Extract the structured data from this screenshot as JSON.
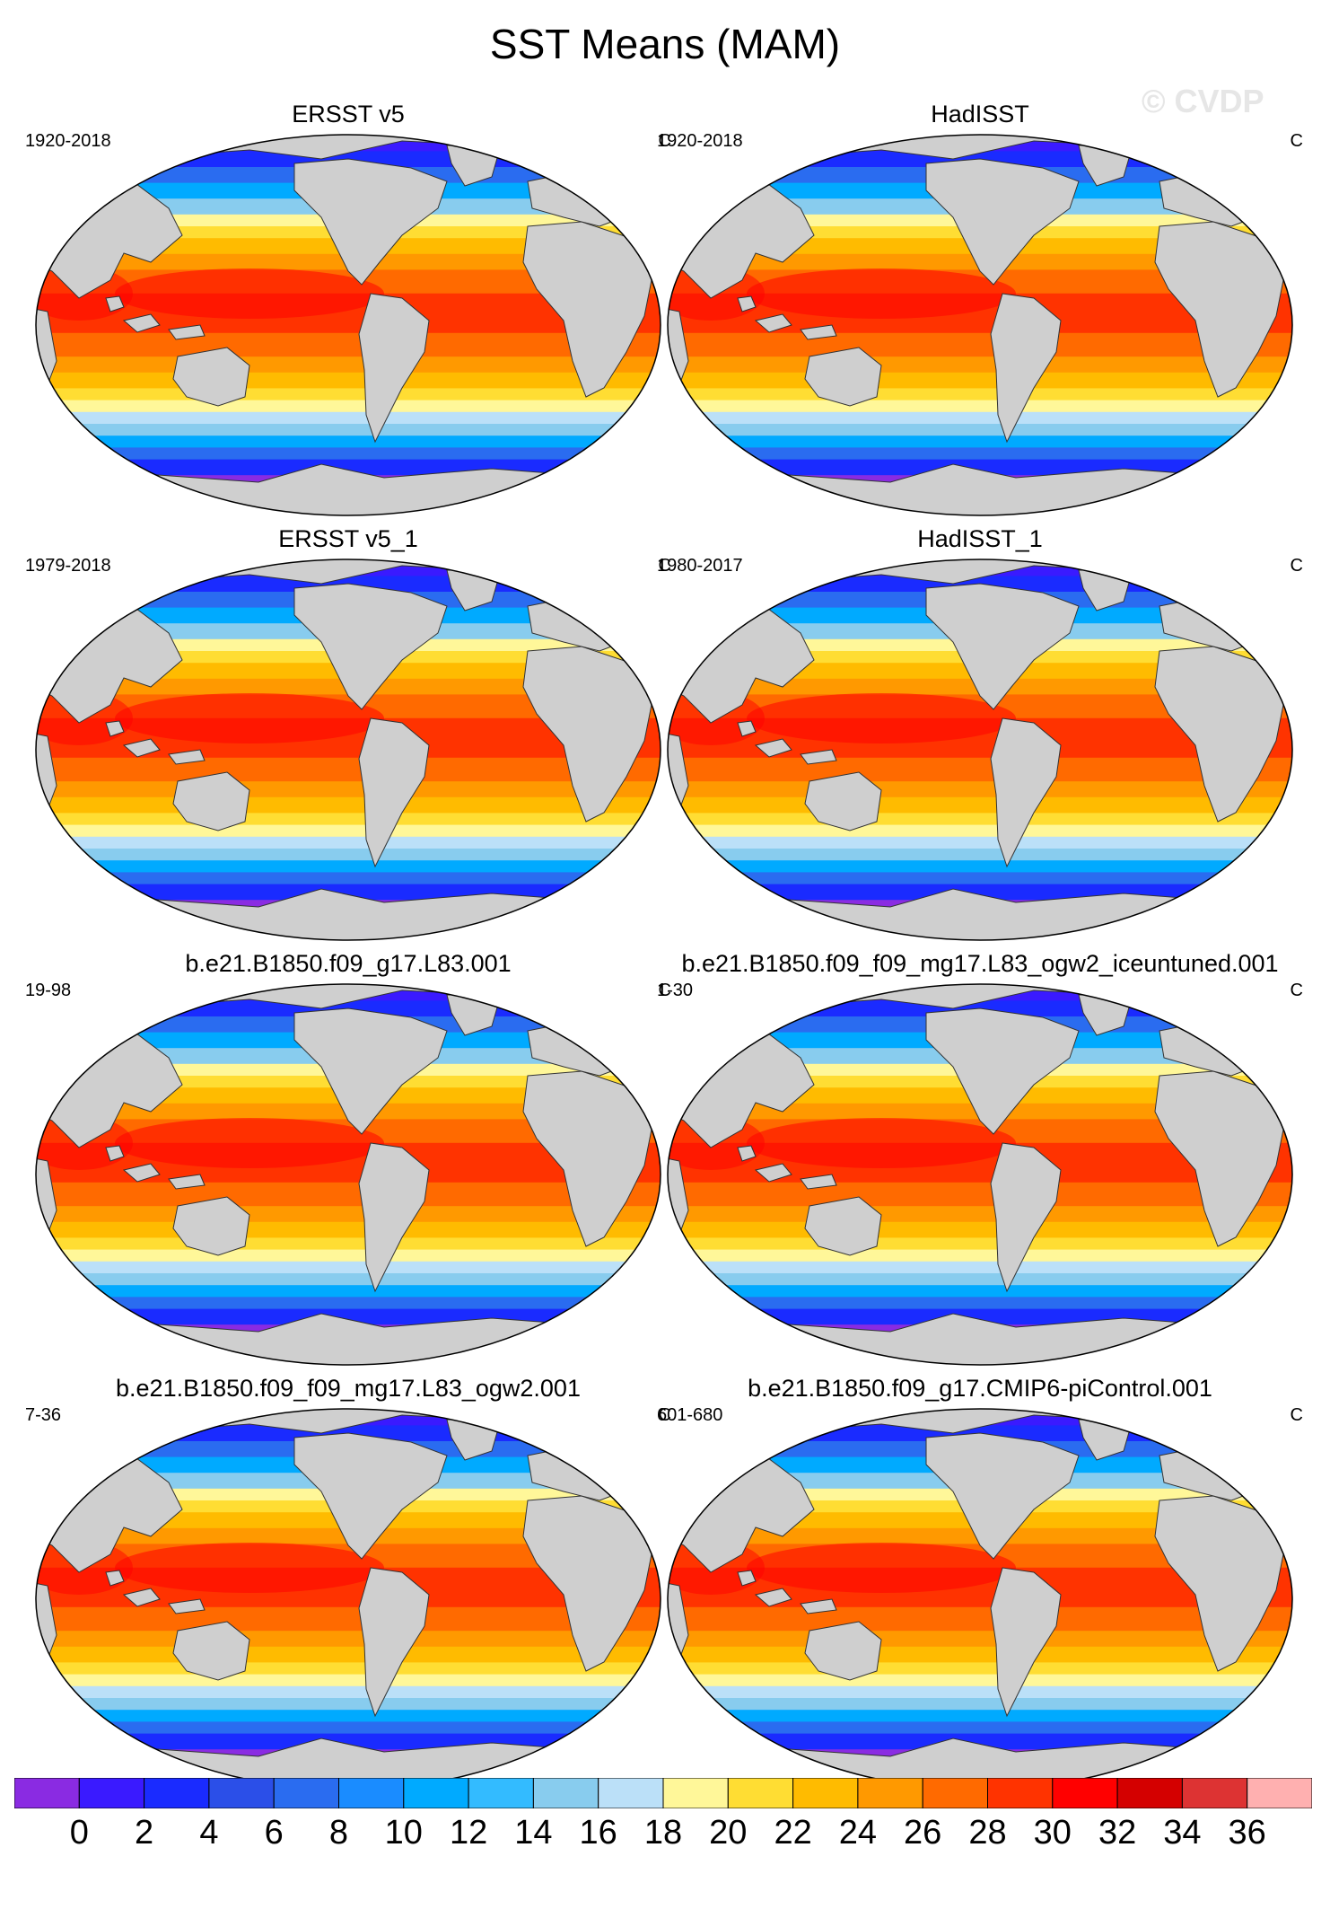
{
  "title": "SST Means (MAM)",
  "watermark": "© CVDP",
  "units": "C",
  "colors": {
    "land": "#cfcfcf",
    "coast": "#333333"
  },
  "panels": [
    {
      "title": "ERSST v5",
      "period": "1920-2018"
    },
    {
      "title": "HadISST",
      "period": "1920-2018"
    },
    {
      "title": "ERSST v5_1",
      "period": "1979-2018"
    },
    {
      "title": "HadISST_1",
      "period": "1980-2017"
    },
    {
      "title": "b.e21.B1850.f09_g17.L83.001",
      "period": "19-98"
    },
    {
      "title": "b.e21.B1850.f09_f09_mg17.L83_ogw2_iceuntuned.001",
      "period": "1-30"
    },
    {
      "title": "b.e21.B1850.f09_f09_mg17.L83_ogw2.001",
      "period": "7-36"
    },
    {
      "title": "b.e21.B1850.f09_g17.CMIP6-piControl.001",
      "period": "601-680"
    }
  ],
  "colorbar": {
    "labels": [
      "0",
      "2",
      "4",
      "6",
      "8",
      "10",
      "12",
      "14",
      "16",
      "18",
      "20",
      "22",
      "24",
      "26",
      "28",
      "30",
      "32",
      "34",
      "36"
    ],
    "colors": [
      "#8a2be2",
      "#3a1aff",
      "#1a2bff",
      "#2b4fe8",
      "#2a6cf0",
      "#1a8cff",
      "#00aaff",
      "#33bbff",
      "#88ccee",
      "#bbe0f8",
      "#fff799",
      "#ffdd33",
      "#ffbb00",
      "#ff9900",
      "#ff6a00",
      "#ff3300",
      "#ff0000",
      "#d40000",
      "#dd3333",
      "#ffb0b0"
    ]
  }
}
